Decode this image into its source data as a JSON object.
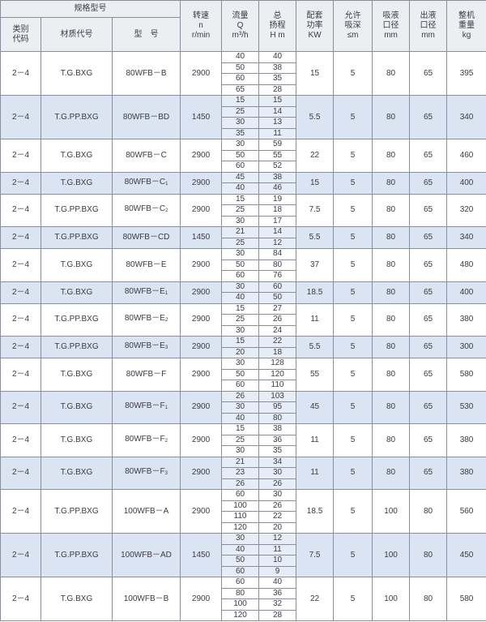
{
  "header": {
    "group": "规格型号",
    "category": "类别\n代码",
    "material": "材质代号",
    "model": "型　号",
    "speed": "转速\nn\nr/min",
    "flow": "流量\nQ\nm³/h",
    "head": "总\n扬程\nH m",
    "power": "配套\n功率\nKW",
    "suction_depth": "允许\n吸深\n≤m",
    "inlet": "吸液\n口径\nmm",
    "outlet": "出液\n口径\nmm",
    "weight": "整机\n重量\nkg"
  },
  "colors": {
    "shade": "#dbe4f2",
    "header": "#eceef2",
    "border": "#8a8e9a"
  },
  "rows": [
    {
      "code": "2－4",
      "material": "T.G.BXG",
      "model": "80WFB－B",
      "sub": "",
      "speed": "2900",
      "q": [
        "40",
        "50",
        "60",
        "65"
      ],
      "h": [
        "40",
        "38",
        "35",
        "28"
      ],
      "power": "15",
      "depth": "5",
      "inlet": "80",
      "outlet": "65",
      "weight": "395"
    },
    {
      "code": "2－4",
      "material": "T.G.PP.BXG",
      "model": "80WFB－BD",
      "sub": "",
      "speed": "1450",
      "q": [
        "15",
        "25",
        "30",
        "35"
      ],
      "h": [
        "15",
        "14",
        "13",
        "11"
      ],
      "power": "5.5",
      "depth": "5",
      "inlet": "80",
      "outlet": "65",
      "weight": "340"
    },
    {
      "code": "2－4",
      "material": "T.G.BXG",
      "model": "80WFB－C",
      "sub": "",
      "speed": "2900",
      "q": [
        "30",
        "50",
        "60"
      ],
      "h": [
        "59",
        "55",
        "52"
      ],
      "power": "22",
      "depth": "5",
      "inlet": "80",
      "outlet": "65",
      "weight": "460"
    },
    {
      "code": "2－4",
      "material": "T.G.BXG",
      "model": "80WFB－C",
      "sub": "1",
      "speed": "2900",
      "q": [
        "45",
        "40"
      ],
      "h": [
        "38",
        "46"
      ],
      "power": "15",
      "depth": "5",
      "inlet": "80",
      "outlet": "65",
      "weight": "400"
    },
    {
      "code": "2－4",
      "material": "T.G.PP.BXG",
      "model": "80WFB－C",
      "sub": "2",
      "speed": "2900",
      "q": [
        "15",
        "25",
        "30"
      ],
      "h": [
        "19",
        "18",
        "17"
      ],
      "power": "7.5",
      "depth": "5",
      "inlet": "80",
      "outlet": "65",
      "weight": "320"
    },
    {
      "code": "2－4",
      "material": "T.G.PP.BXG",
      "model": "80WFB－CD",
      "sub": "",
      "speed": "1450",
      "q": [
        "21",
        "25"
      ],
      "h": [
        "14",
        "12"
      ],
      "power": "5.5",
      "depth": "5",
      "inlet": "80",
      "outlet": "65",
      "weight": "340"
    },
    {
      "code": "2－4",
      "material": "T.G.BXG",
      "model": "80WFB－E",
      "sub": "",
      "speed": "2900",
      "q": [
        "30",
        "50",
        "60"
      ],
      "h": [
        "84",
        "80",
        "76"
      ],
      "power": "37",
      "depth": "5",
      "inlet": "80",
      "outlet": "65",
      "weight": "480"
    },
    {
      "code": "2－4",
      "material": "T.G.BXG",
      "model": "80WFB－E",
      "sub": "1",
      "speed": "2900",
      "q": [
        "30",
        "40"
      ],
      "h": [
        "60",
        "50"
      ],
      "power": "18.5",
      "depth": "5",
      "inlet": "80",
      "outlet": "65",
      "weight": "400"
    },
    {
      "code": "2－4",
      "material": "T.G.PP.BXG",
      "model": "80WFB－E",
      "sub": "2",
      "speed": "2900",
      "q": [
        "15",
        "25",
        "30"
      ],
      "h": [
        "27",
        "26",
        "24"
      ],
      "power": "11",
      "depth": "5",
      "inlet": "80",
      "outlet": "65",
      "weight": "380"
    },
    {
      "code": "2－4",
      "material": "T.G.PP.BXG",
      "model": "80WFB－E",
      "sub": "3",
      "speed": "2900",
      "q": [
        "15",
        "20"
      ],
      "h": [
        "22",
        "18"
      ],
      "power": "5.5",
      "depth": "5",
      "inlet": "80",
      "outlet": "65",
      "weight": "300"
    },
    {
      "code": "2－4",
      "material": "T.G.BXG",
      "model": "80WFB－F",
      "sub": "",
      "speed": "2900",
      "q": [
        "30",
        "50",
        "60"
      ],
      "h": [
        "128",
        "120",
        "110"
      ],
      "power": "55",
      "depth": "5",
      "inlet": "80",
      "outlet": "65",
      "weight": "580"
    },
    {
      "code": "2－4",
      "material": "T.G.BXG",
      "model": "80WFB－F",
      "sub": "1",
      "speed": "2900",
      "q": [
        "26",
        "30",
        "40"
      ],
      "h": [
        "103",
        "95",
        "80"
      ],
      "power": "45",
      "depth": "5",
      "inlet": "80",
      "outlet": "65",
      "weight": "530"
    },
    {
      "code": "2－4",
      "material": "T.G.BXG",
      "model": "80WFB－F",
      "sub": "2",
      "speed": "2900",
      "q": [
        "15",
        "25",
        "30"
      ],
      "h": [
        "38",
        "36",
        "35"
      ],
      "power": "11",
      "depth": "5",
      "inlet": "80",
      "outlet": "65",
      "weight": "380"
    },
    {
      "code": "2－4",
      "material": "T.G.BXG",
      "model": "80WFB－F",
      "sub": "3",
      "speed": "2900",
      "q": [
        "21",
        "23",
        "26"
      ],
      "h": [
        "34",
        "30",
        "26"
      ],
      "power": "11",
      "depth": "5",
      "inlet": "80",
      "outlet": "65",
      "weight": "380"
    },
    {
      "code": "2－4",
      "material": "T.G.PP.BXG",
      "model": "100WFB－A",
      "sub": "",
      "speed": "2900",
      "q": [
        "60",
        "100",
        "110",
        "120"
      ],
      "h": [
        "30",
        "26",
        "22",
        "20"
      ],
      "power": "18.5",
      "depth": "5",
      "inlet": "100",
      "outlet": "80",
      "weight": "560"
    },
    {
      "code": "2－4",
      "material": "T.G.PP.BXG",
      "model": "100WFB－AD",
      "sub": "",
      "speed": "1450",
      "q": [
        "30",
        "40",
        "50",
        "60"
      ],
      "h": [
        "12",
        "11",
        "10",
        "9"
      ],
      "power": "7.5",
      "depth": "5",
      "inlet": "100",
      "outlet": "80",
      "weight": "450"
    },
    {
      "code": "2－4",
      "material": "T.G.BXG",
      "model": "100WFB－B",
      "sub": "",
      "speed": "2900",
      "q": [
        "60",
        "80",
        "100",
        "120"
      ],
      "h": [
        "40",
        "36",
        "32",
        "28"
      ],
      "power": "22",
      "depth": "5",
      "inlet": "100",
      "outlet": "80",
      "weight": "580"
    }
  ]
}
